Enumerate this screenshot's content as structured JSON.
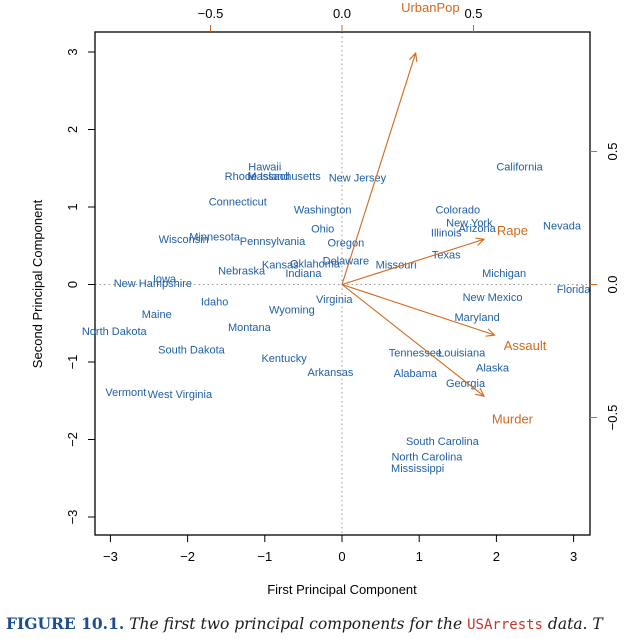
{
  "chart_data": {
    "type": "scatter",
    "subtype": "biplot",
    "xlabel": "First Principal Component",
    "ylabel": "Second Principal Component",
    "xlim": [
      -3.2,
      3.2
    ],
    "ylim": [
      -3.2,
      3.4
    ],
    "x_ticks": [
      "−3",
      "−2",
      "−1",
      "0",
      "1",
      "2",
      "3"
    ],
    "y_ticks": [
      "−3",
      "−2",
      "−1",
      "0",
      "1",
      "2",
      "3"
    ],
    "top_ticks": [
      "−0.5",
      "0.0",
      "0.5"
    ],
    "right_ticks": [
      "−0.5",
      "0.0",
      "0.5"
    ],
    "reference_lines": "dotted at x=0 and y=0",
    "colors": {
      "points": "#1f5fa6",
      "loadings": "#d2691e",
      "frame": "#000000"
    },
    "points": [
      {
        "label": "Hawaii",
        "x": -1.0,
        "y": 1.52
      },
      {
        "label": "Rhode Island",
        "x": -1.1,
        "y": 1.4
      },
      {
        "label": "Massachusetts",
        "x": -0.75,
        "y": 1.4
      },
      {
        "label": "New Jersey",
        "x": 0.2,
        "y": 1.38
      },
      {
        "label": "California",
        "x": 2.3,
        "y": 1.52
      },
      {
        "label": "Connecticut",
        "x": -1.35,
        "y": 1.07
      },
      {
        "label": "Washington",
        "x": -0.25,
        "y": 0.97
      },
      {
        "label": "Colorado",
        "x": 1.5,
        "y": 0.97
      },
      {
        "label": "New York",
        "x": 1.65,
        "y": 0.8
      },
      {
        "label": "Arizona",
        "x": 1.75,
        "y": 0.73
      },
      {
        "label": "Nevada",
        "x": 2.85,
        "y": 0.76
      },
      {
        "label": "Illinois",
        "x": 1.35,
        "y": 0.67
      },
      {
        "label": "Ohio",
        "x": -0.25,
        "y": 0.72
      },
      {
        "label": "Wisconsin",
        "x": -2.05,
        "y": 0.59
      },
      {
        "label": "Minnesota",
        "x": -1.65,
        "y": 0.62
      },
      {
        "label": "Pennsylvania",
        "x": -0.9,
        "y": 0.56
      },
      {
        "label": "Oregon",
        "x": 0.05,
        "y": 0.54
      },
      {
        "label": "Texas",
        "x": 1.35,
        "y": 0.39
      },
      {
        "label": "Kansas",
        "x": -0.8,
        "y": 0.26
      },
      {
        "label": "Oklahoma",
        "x": -0.35,
        "y": 0.27
      },
      {
        "label": "Delaware",
        "x": 0.05,
        "y": 0.31
      },
      {
        "label": "Missouri",
        "x": 0.7,
        "y": 0.26
      },
      {
        "label": "Nebraska",
        "x": -1.3,
        "y": 0.18
      },
      {
        "label": "Indiana",
        "x": -0.5,
        "y": 0.15
      },
      {
        "label": "Michigan",
        "x": 2.1,
        "y": 0.15
      },
      {
        "label": "Iowa",
        "x": -2.3,
        "y": 0.08
      },
      {
        "label": "New Hampshire",
        "x": -2.45,
        "y": 0.02
      },
      {
        "label": "Florida",
        "x": 3.0,
        "y": -0.06
      },
      {
        "label": "Idaho",
        "x": -1.65,
        "y": -0.22
      },
      {
        "label": "Virginia",
        "x": -0.1,
        "y": -0.19
      },
      {
        "label": "New Mexico",
        "x": 1.95,
        "y": -0.16
      },
      {
        "label": "Wyoming",
        "x": -0.65,
        "y": -0.32
      },
      {
        "label": "Maine",
        "x": -2.4,
        "y": -0.38
      },
      {
        "label": "Maryland",
        "x": 1.75,
        "y": -0.42
      },
      {
        "label": "North Dakota",
        "x": -2.95,
        "y": -0.6
      },
      {
        "label": "Montana",
        "x": -1.2,
        "y": -0.55
      },
      {
        "label": "South Dakota",
        "x": -1.95,
        "y": -0.84
      },
      {
        "label": "Tennessee",
        "x": 0.95,
        "y": -0.88
      },
      {
        "label": "Louisiana",
        "x": 1.55,
        "y": -0.88
      },
      {
        "label": "Kentucky",
        "x": -0.75,
        "y": -0.95
      },
      {
        "label": "Alaska",
        "x": 1.95,
        "y": -1.07
      },
      {
        "label": "Arkansas",
        "x": -0.15,
        "y": -1.13
      },
      {
        "label": "Alabama",
        "x": 0.95,
        "y": -1.14
      },
      {
        "label": "Georgia",
        "x": 1.6,
        "y": -1.27
      },
      {
        "label": "Vermont",
        "x": -2.8,
        "y": -1.39
      },
      {
        "label": "West Virginia",
        "x": -2.1,
        "y": -1.41
      },
      {
        "label": "South Carolina",
        "x": 1.3,
        "y": -2.02
      },
      {
        "label": "North Carolina",
        "x": 1.1,
        "y": -2.22
      },
      {
        "label": "Mississippi",
        "x": 0.98,
        "y": -2.37
      }
    ],
    "loadings": [
      {
        "label": "UrbanPop",
        "x": 0.28,
        "y": 0.87
      },
      {
        "label": "Rape",
        "x": 0.54,
        "y": 0.17
      },
      {
        "label": "Assault",
        "x": 0.58,
        "y": -0.19
      },
      {
        "label": "Murder",
        "x": 0.54,
        "y": -0.42
      }
    ]
  },
  "caption": {
    "label": "FIGURE 10.1.",
    "text_before": "The first two principal components for the",
    "mono": "USArrests",
    "text_after": "data. T"
  }
}
